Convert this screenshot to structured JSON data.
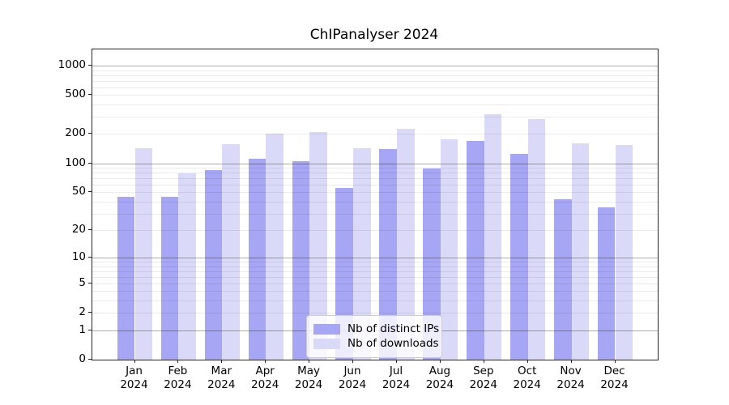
{
  "chart_data": {
    "type": "bar",
    "title": "ChIPanalyser 2024",
    "categories": [
      "Jan 2024",
      "Feb 2024",
      "Mar 2024",
      "Apr 2024",
      "May 2024",
      "Jun 2024",
      "Jul 2024",
      "Aug 2024",
      "Sep 2024",
      "Oct 2024",
      "Nov 2024",
      "Dec 2024"
    ],
    "series": [
      {
        "name": "Nb of distinct IPs",
        "color": "#a6a6f4",
        "values": [
          45,
          45,
          85,
          112,
          105,
          56,
          141,
          89,
          171,
          125,
          42,
          35
        ]
      },
      {
        "name": "Nb of downloads",
        "color": "#dadaf8",
        "values": [
          144,
          79,
          157,
          203,
          211,
          143,
          225,
          175,
          321,
          285,
          161,
          154
        ]
      }
    ],
    "xlabel": "",
    "ylabel": "",
    "yscale": "log1p",
    "y_tick_values": [
      1000,
      500,
      200,
      100,
      50,
      20,
      10,
      5,
      2,
      1,
      0
    ],
    "ylim": [
      0,
      1460
    ],
    "grid": true,
    "grid_on_top_of_bars": true,
    "legend_position": "lower center"
  }
}
